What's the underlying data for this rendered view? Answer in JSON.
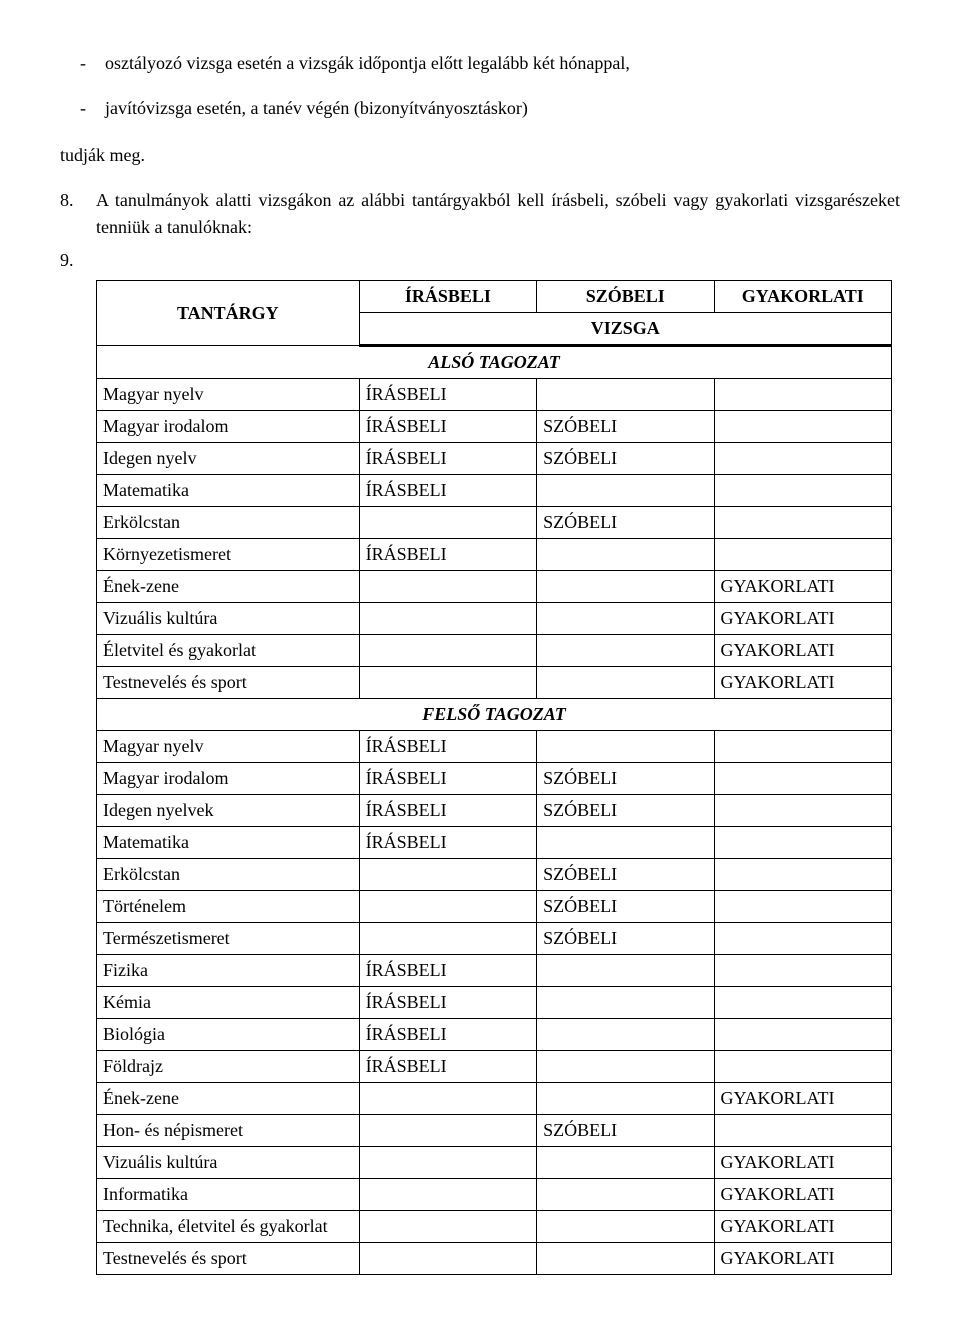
{
  "bullets": [
    "osztályozó vizsga esetén a vizsgák időpontja előtt legalább két hónappal,",
    "javítóvizsga esetén, a tanév végén (bizonyítványosztáskor)"
  ],
  "plain_after_bullets": "tudják meg.",
  "numbered": [
    {
      "n": "8.",
      "t": "A tanulmányok alatti vizsgákon az alábbi tantárgyakból kell írásbeli, szóbeli vagy gyakorlati vizsgarészeket tenniük a tanulóknak:"
    },
    {
      "n": "9.",
      "t": ""
    }
  ],
  "table": {
    "header": {
      "subject": "TANTÁRGY",
      "cols": [
        "ÍRÁSBELI",
        "SZÓBELI",
        "GYAKORLATI"
      ],
      "span_label": "VIZSGA"
    },
    "sections": [
      {
        "title": "ALSÓ TAGOZAT",
        "rows": [
          {
            "s": "Magyar nyelv",
            "i": "ÍRÁSBELI",
            "sz": "",
            "g": ""
          },
          {
            "s": "Magyar irodalom",
            "i": "ÍRÁSBELI",
            "sz": "SZÓBELI",
            "g": ""
          },
          {
            "s": "Idegen nyelv",
            "i": "ÍRÁSBELI",
            "sz": "SZÓBELI",
            "g": ""
          },
          {
            "s": "Matematika",
            "i": "ÍRÁSBELI",
            "sz": "",
            "g": ""
          },
          {
            "s": "Erkölcstan",
            "i": "",
            "sz": "SZÓBELI",
            "g": ""
          },
          {
            "s": "Környezetismeret",
            "i": "ÍRÁSBELI",
            "sz": "",
            "g": ""
          },
          {
            "s": "Ének-zene",
            "i": "",
            "sz": "",
            "g": "GYAKORLATI"
          },
          {
            "s": "Vizuális kultúra",
            "i": "",
            "sz": "",
            "g": "GYAKORLATI"
          },
          {
            "s": "Életvitel és gyakorlat",
            "i": "",
            "sz": "",
            "g": "GYAKORLATI"
          },
          {
            "s": "Testnevelés és sport",
            "i": "",
            "sz": "",
            "g": "GYAKORLATI"
          }
        ]
      },
      {
        "title": "FELSŐ TAGOZAT",
        "rows": [
          {
            "s": "Magyar nyelv",
            "i": "ÍRÁSBELI",
            "sz": "",
            "g": ""
          },
          {
            "s": "Magyar irodalom",
            "i": "ÍRÁSBELI",
            "sz": "SZÓBELI",
            "g": ""
          },
          {
            "s": "Idegen nyelvek",
            "i": "ÍRÁSBELI",
            "sz": "SZÓBELI",
            "g": ""
          },
          {
            "s": "Matematika",
            "i": "ÍRÁSBELI",
            "sz": "",
            "g": ""
          },
          {
            "s": "Erkölcstan",
            "i": "",
            "sz": "SZÓBELI",
            "g": ""
          },
          {
            "s": "Történelem",
            "i": "",
            "sz": "SZÓBELI",
            "g": ""
          },
          {
            "s": "Természetismeret",
            "i": "",
            "sz": "SZÓBELI",
            "g": ""
          },
          {
            "s": "Fizika",
            "i": "ÍRÁSBELI",
            "sz": "",
            "g": ""
          },
          {
            "s": "Kémia",
            "i": "ÍRÁSBELI",
            "sz": "",
            "g": ""
          },
          {
            "s": "Biológia",
            "i": "ÍRÁSBELI",
            "sz": "",
            "g": ""
          },
          {
            "s": "Földrajz",
            "i": "ÍRÁSBELI",
            "sz": "",
            "g": ""
          },
          {
            "s": "Ének-zene",
            "i": "",
            "sz": "",
            "g": "GYAKORLATI"
          },
          {
            "s": "Hon- és népismeret",
            "i": "",
            "sz": "SZÓBELI",
            "g": ""
          },
          {
            "s": "Vizuális kultúra",
            "i": "",
            "sz": "",
            "g": "GYAKORLATI"
          },
          {
            "s": "Informatika",
            "i": "",
            "sz": "",
            "g": "GYAKORLATI"
          },
          {
            "s": "Technika, életvitel és gyakorlat",
            "i": "",
            "sz": "",
            "g": "GYAKORLATI"
          },
          {
            "s": "Testnevelés és sport",
            "i": "",
            "sz": "",
            "g": "GYAKORLATI"
          }
        ]
      }
    ]
  }
}
